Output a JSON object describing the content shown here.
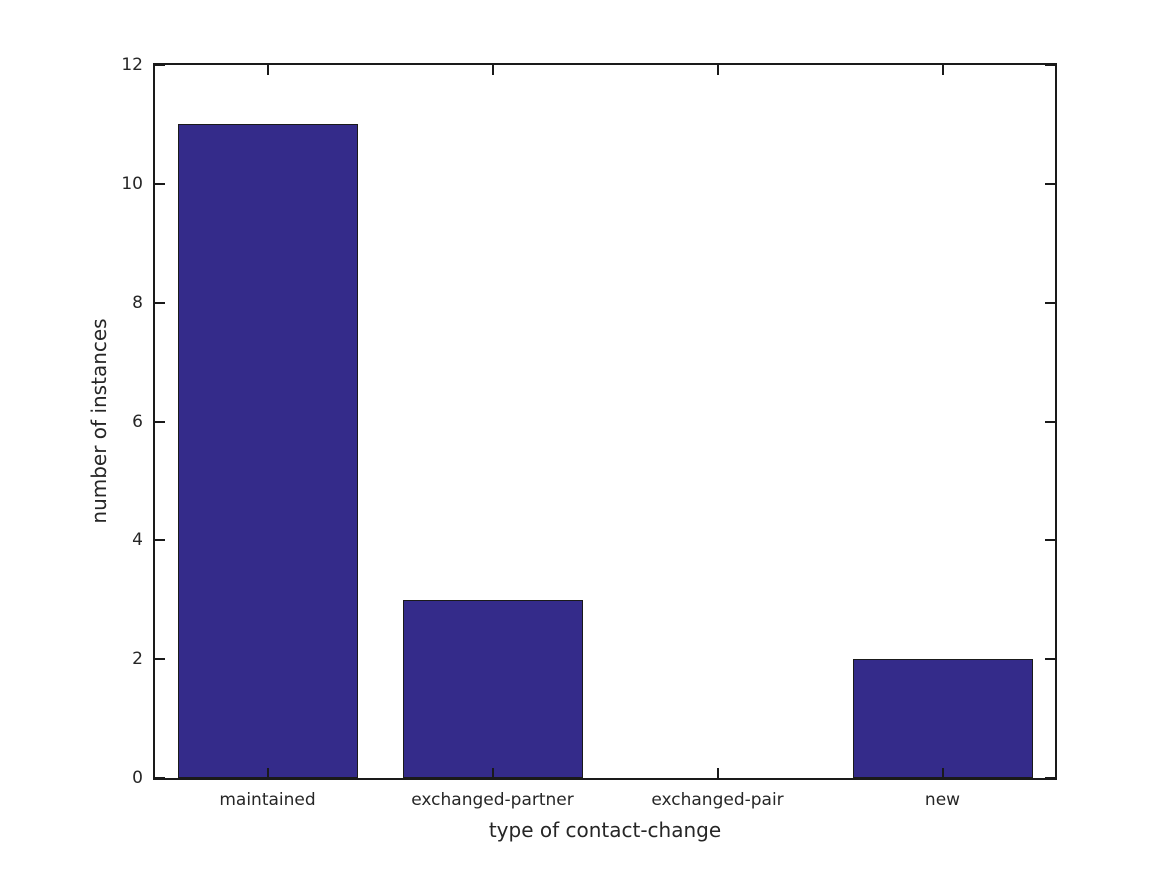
{
  "chart_data": {
    "type": "bar",
    "categories": [
      "maintained",
      "exchanged-partner",
      "exchanged-pair",
      "new"
    ],
    "values": [
      11,
      3,
      0,
      2
    ],
    "title": "",
    "xlabel": "type of contact-change",
    "ylabel": "number of instances",
    "ylim": [
      0,
      12
    ],
    "yticks": [
      0,
      2,
      4,
      6,
      8,
      10,
      12
    ],
    "bar_width_fraction": 0.8,
    "grid": false,
    "legend": null,
    "box": true,
    "tick_direction": "in",
    "colors": {
      "bar_fill": "#342b8a",
      "bar_edge": "#1a1a1a",
      "axis": "#1a1a1a",
      "text": "#262626",
      "background": "#ffffff"
    }
  }
}
